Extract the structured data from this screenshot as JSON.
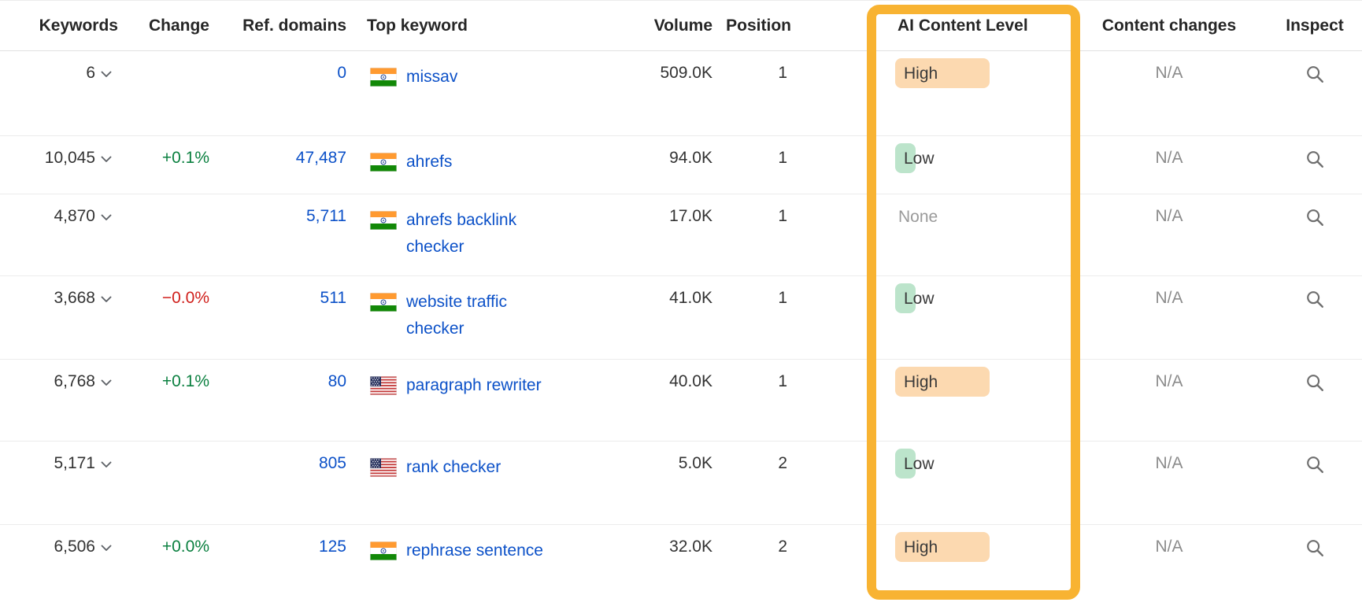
{
  "table": {
    "columns": [
      {
        "id": "keywords",
        "label": "Keywords"
      },
      {
        "id": "change",
        "label": "Change"
      },
      {
        "id": "ref_domains",
        "label": "Ref. domains"
      },
      {
        "id": "top_keyword",
        "label": "Top keyword"
      },
      {
        "id": "volume",
        "label": "Volume"
      },
      {
        "id": "position",
        "label": "Position"
      },
      {
        "id": "ai_content_level",
        "label": "AI Content Level"
      },
      {
        "id": "content_changes",
        "label": "Content changes"
      },
      {
        "id": "inspect",
        "label": "Inspect"
      }
    ],
    "rows": [
      {
        "keywords": "6",
        "change": "",
        "ref_domains": "0",
        "country": "india",
        "top_keyword": "missav",
        "volume": "509.0K",
        "position": "1",
        "ai_content_level": "High",
        "content_changes": "N/A"
      },
      {
        "keywords": "10,045",
        "change": "+0.1%",
        "ref_domains": "47,487",
        "country": "india",
        "top_keyword": "ahrefs",
        "volume": "94.0K",
        "position": "1",
        "ai_content_level": "Low",
        "content_changes": "N/A"
      },
      {
        "keywords": "4,870",
        "change": "",
        "ref_domains": "5,711",
        "country": "india",
        "top_keyword": "ahrefs backlink checker",
        "volume": "17.0K",
        "position": "1",
        "ai_content_level": "None",
        "content_changes": "N/A"
      },
      {
        "keywords": "3,668",
        "change": "−0.0%",
        "ref_domains": "511",
        "country": "india",
        "top_keyword": "website traffic checker",
        "volume": "41.0K",
        "position": "1",
        "ai_content_level": "Low",
        "content_changes": "N/A"
      },
      {
        "keywords": "6,768",
        "change": "+0.1%",
        "ref_domains": "80",
        "country": "usa",
        "top_keyword": "paragraph rewriter",
        "volume": "40.0K",
        "position": "1",
        "ai_content_level": "High",
        "content_changes": "N/A"
      },
      {
        "keywords": "5,171",
        "change": "",
        "ref_domains": "805",
        "country": "usa",
        "top_keyword": "rank checker",
        "volume": "5.0K",
        "position": "2",
        "ai_content_level": "Low",
        "content_changes": "N/A"
      },
      {
        "keywords": "6,506",
        "change": "+0.0%",
        "ref_domains": "125",
        "country": "india",
        "top_keyword": "rephrase sentence",
        "volume": "32.0K",
        "position": "2",
        "ai_content_level": "High",
        "content_changes": "N/A"
      }
    ]
  },
  "highlight": {
    "target_column": "AI Content Level",
    "border_color": "#F8B332"
  },
  "colors": {
    "link_blue": "#0C51C8",
    "change_positive": "#0B8040",
    "change_negative": "#D0201C",
    "muted_gray": "#8C8C8C",
    "ai_high_bg": "#FCD9B0",
    "ai_low_bg": "#BCE4CB"
  },
  "icons": {
    "keywords_expander": "chevron-down-icon",
    "inspect": "magnifier-icon",
    "india": "flag-icon-india",
    "usa": "flag-icon-us"
  }
}
